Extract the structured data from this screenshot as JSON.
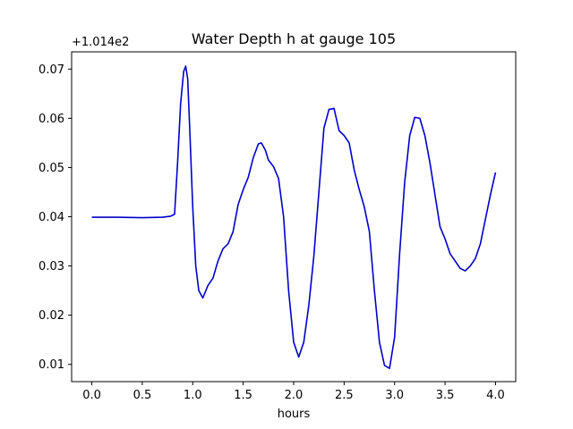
{
  "chart_data": {
    "type": "line",
    "title": "Water Depth h at gauge 105",
    "xlabel": "hours",
    "ylabel": "",
    "y_offset_label": "+1.014e2",
    "xlim": [
      -0.2,
      4.2
    ],
    "ylim": [
      0.0065,
      0.0735
    ],
    "x_ticks": [
      0.0,
      0.5,
      1.0,
      1.5,
      2.0,
      2.5,
      3.0,
      3.5,
      4.0
    ],
    "x_tick_labels": [
      "0.0",
      "0.5",
      "1.0",
      "1.5",
      "2.0",
      "2.5",
      "3.0",
      "3.5",
      "4.0"
    ],
    "y_ticks": [
      0.01,
      0.02,
      0.03,
      0.04,
      0.05,
      0.06,
      0.07
    ],
    "y_tick_labels": [
      "0.01",
      "0.02",
      "0.03",
      "0.04",
      "0.05",
      "0.06",
      "0.07"
    ],
    "grid": false,
    "series": [
      {
        "color": "#0000cc",
        "x": [
          0.0,
          0.25,
          0.5,
          0.7,
          0.78,
          0.82,
          0.85,
          0.88,
          0.91,
          0.93,
          0.95,
          0.97,
          1.0,
          1.03,
          1.06,
          1.1,
          1.15,
          1.2,
          1.25,
          1.3,
          1.35,
          1.4,
          1.45,
          1.5,
          1.55,
          1.6,
          1.65,
          1.68,
          1.72,
          1.75,
          1.8,
          1.85,
          1.9,
          1.95,
          2.0,
          2.05,
          2.1,
          2.15,
          2.2,
          2.25,
          2.3,
          2.35,
          2.4,
          2.45,
          2.5,
          2.55,
          2.6,
          2.65,
          2.7,
          2.75,
          2.8,
          2.85,
          2.9,
          2.95,
          3.0,
          3.05,
          3.1,
          3.15,
          3.2,
          3.25,
          3.3,
          3.35,
          3.4,
          3.45,
          3.5,
          3.55,
          3.6,
          3.65,
          3.7,
          3.75,
          3.8,
          3.85,
          3.9,
          3.95,
          4.0
        ],
        "y": [
          0.0399,
          0.0399,
          0.0398,
          0.0399,
          0.0401,
          0.0405,
          0.051,
          0.063,
          0.0695,
          0.0706,
          0.068,
          0.058,
          0.042,
          0.03,
          0.025,
          0.0235,
          0.026,
          0.0275,
          0.031,
          0.0335,
          0.0345,
          0.037,
          0.0425,
          0.0455,
          0.048,
          0.052,
          0.0548,
          0.055,
          0.0535,
          0.0515,
          0.0502,
          0.0478,
          0.04,
          0.025,
          0.0145,
          0.0115,
          0.0145,
          0.022,
          0.032,
          0.045,
          0.058,
          0.0618,
          0.062,
          0.0575,
          0.0565,
          0.055,
          0.0495,
          0.0455,
          0.042,
          0.037,
          0.025,
          0.0145,
          0.0098,
          0.0092,
          0.0155,
          0.0325,
          0.047,
          0.0565,
          0.0602,
          0.06,
          0.0565,
          0.051,
          0.0445,
          0.038,
          0.0355,
          0.0325,
          0.031,
          0.0295,
          0.029,
          0.03,
          0.0315,
          0.0345,
          0.0395,
          0.0445,
          0.049
        ]
      }
    ]
  }
}
